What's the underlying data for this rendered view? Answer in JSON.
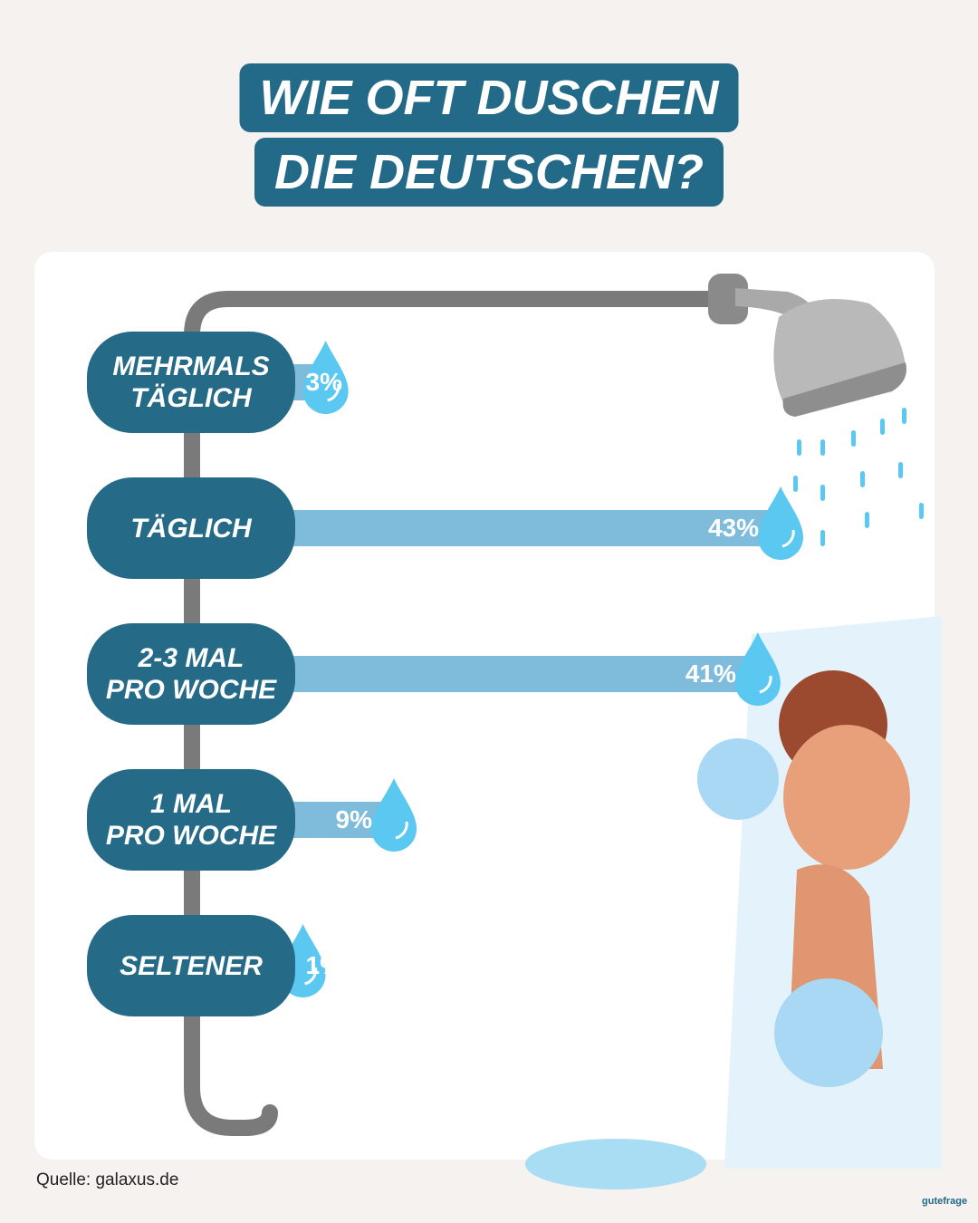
{
  "chart_data": {
    "type": "bar",
    "title": [
      "WIE OFT DUSCHEN",
      "DIE DEUTSCHEN?"
    ],
    "categories": [
      "MEHRMALS\nTÄGLICH",
      "TÄGLICH",
      "2-3 MAL\nPRO WOCHE",
      "1 MAL\nPRO WOCHE",
      "SELTENER"
    ],
    "values": [
      3,
      43,
      41,
      9,
      1
    ],
    "value_labels": [
      "3%",
      "43%",
      "41%",
      "9%",
      "1%"
    ],
    "color": "#7fbcdc",
    "source": "Quelle: galaxus.de",
    "logo": "gutefrage"
  }
}
